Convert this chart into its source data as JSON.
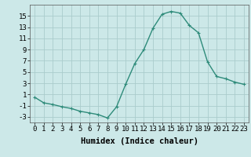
{
  "x": [
    0,
    1,
    2,
    3,
    4,
    5,
    6,
    7,
    8,
    9,
    10,
    11,
    12,
    13,
    14,
    15,
    16,
    17,
    18,
    19,
    20,
    21,
    22,
    23
  ],
  "y": [
    0.5,
    -0.5,
    -0.8,
    -1.2,
    -1.5,
    -2.0,
    -2.3,
    -2.6,
    -3.2,
    -1.2,
    2.8,
    6.5,
    9.0,
    12.8,
    15.3,
    15.8,
    15.5,
    13.3,
    12.0,
    6.8,
    4.2,
    3.8,
    3.2,
    2.8
  ],
  "line_color": "#2e8b7a",
  "marker": "+",
  "marker_size": 3,
  "marker_linewidth": 0.8,
  "line_width": 1.0,
  "bg_color": "#cce8e8",
  "grid_color": "#aacccc",
  "xlabel": "Humidex (Indice chaleur)",
  "xlim": [
    -0.5,
    23.5
  ],
  "ylim": [
    -4,
    17
  ],
  "yticks": [
    -3,
    -1,
    1,
    3,
    5,
    7,
    9,
    11,
    13,
    15
  ],
  "xticks": [
    0,
    1,
    2,
    3,
    4,
    5,
    6,
    7,
    8,
    9,
    10,
    11,
    12,
    13,
    14,
    15,
    16,
    17,
    18,
    19,
    20,
    21,
    22,
    23
  ],
  "tick_fontsize": 6.5,
  "label_fontsize": 7.5
}
